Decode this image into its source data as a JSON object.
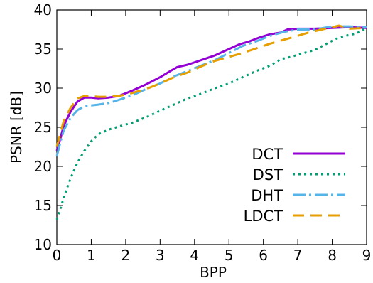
{
  "chart_data": {
    "type": "line",
    "title": "",
    "xlabel": "BPP",
    "ylabel": "PSNR [dB]",
    "xlim": [
      0,
      9
    ],
    "ylim": [
      10,
      40
    ],
    "x_ticks": [
      0,
      1,
      2,
      3,
      4,
      5,
      6,
      7,
      8,
      9
    ],
    "y_ticks": [
      10,
      15,
      20,
      25,
      30,
      35,
      40
    ],
    "grid": false,
    "legend_position": "bottom-right",
    "series": [
      {
        "name": "DCT",
        "color": "#9400d3",
        "dash": "solid",
        "points": [
          [
            0,
            22.0
          ],
          [
            0.1,
            23.5
          ],
          [
            0.2,
            25.2
          ],
          [
            0.4,
            27.0
          ],
          [
            0.6,
            28.3
          ],
          [
            0.8,
            28.8
          ],
          [
            1.0,
            28.8
          ],
          [
            1.2,
            28.7
          ],
          [
            1.5,
            28.8
          ],
          [
            1.8,
            29.0
          ],
          [
            2.2,
            29.7
          ],
          [
            2.6,
            30.5
          ],
          [
            3.0,
            31.4
          ],
          [
            3.3,
            32.2
          ],
          [
            3.5,
            32.7
          ],
          [
            3.8,
            33.0
          ],
          [
            4.2,
            33.6
          ],
          [
            4.6,
            34.2
          ],
          [
            5.0,
            35.0
          ],
          [
            5.3,
            35.6
          ],
          [
            5.6,
            36.0
          ],
          [
            5.9,
            36.5
          ],
          [
            6.2,
            36.9
          ],
          [
            6.5,
            37.1
          ],
          [
            6.7,
            37.5
          ],
          [
            7.0,
            37.6
          ],
          [
            7.5,
            37.6
          ],
          [
            8.0,
            37.7
          ],
          [
            8.5,
            37.8
          ],
          [
            9.0,
            37.7
          ]
        ]
      },
      {
        "name": "DST",
        "color": "#009e73",
        "dash": "dotted",
        "points": [
          [
            0,
            13.2
          ],
          [
            0.1,
            14.5
          ],
          [
            0.2,
            16.0
          ],
          [
            0.4,
            18.5
          ],
          [
            0.6,
            20.5
          ],
          [
            0.8,
            22.0
          ],
          [
            1.0,
            23.2
          ],
          [
            1.2,
            24.1
          ],
          [
            1.5,
            24.7
          ],
          [
            1.8,
            25.1
          ],
          [
            2.2,
            25.6
          ],
          [
            2.6,
            26.3
          ],
          [
            3.0,
            27.1
          ],
          [
            3.4,
            27.9
          ],
          [
            3.8,
            28.7
          ],
          [
            4.2,
            29.3
          ],
          [
            4.6,
            30.0
          ],
          [
            5.0,
            30.6
          ],
          [
            5.4,
            31.4
          ],
          [
            5.8,
            32.2
          ],
          [
            6.2,
            32.9
          ],
          [
            6.5,
            33.7
          ],
          [
            6.8,
            34.0
          ],
          [
            7.1,
            34.4
          ],
          [
            7.5,
            34.9
          ],
          [
            7.8,
            35.6
          ],
          [
            8.1,
            36.3
          ],
          [
            8.4,
            36.7
          ],
          [
            8.7,
            37.0
          ],
          [
            9.0,
            37.7
          ]
        ]
      },
      {
        "name": "DHT",
        "color": "#56b4e9",
        "dash": "dash-dot",
        "points": [
          [
            0,
            21.3
          ],
          [
            0.1,
            23.0
          ],
          [
            0.2,
            24.6
          ],
          [
            0.4,
            26.2
          ],
          [
            0.6,
            27.2
          ],
          [
            0.8,
            27.7
          ],
          [
            1.0,
            27.8
          ],
          [
            1.2,
            27.9
          ],
          [
            1.5,
            28.1
          ],
          [
            1.8,
            28.5
          ],
          [
            2.2,
            29.1
          ],
          [
            2.6,
            29.9
          ],
          [
            3.0,
            30.6
          ],
          [
            3.4,
            31.5
          ],
          [
            3.8,
            32.2
          ],
          [
            4.2,
            32.9
          ],
          [
            4.6,
            33.6
          ],
          [
            5.0,
            34.5
          ],
          [
            5.4,
            35.4
          ],
          [
            5.8,
            36.0
          ],
          [
            6.2,
            36.7
          ],
          [
            6.6,
            37.2
          ],
          [
            7.0,
            37.5
          ],
          [
            7.5,
            37.5
          ],
          [
            8.0,
            37.9
          ],
          [
            8.5,
            37.9
          ],
          [
            9.0,
            37.8
          ]
        ]
      },
      {
        "name": "LDCT",
        "color": "#e69f00",
        "dash": "dashed",
        "points": [
          [
            0,
            22.5
          ],
          [
            0.1,
            24.2
          ],
          [
            0.2,
            25.8
          ],
          [
            0.4,
            27.5
          ],
          [
            0.6,
            28.7
          ],
          [
            0.8,
            29.0
          ],
          [
            1.0,
            29.0
          ],
          [
            1.2,
            28.9
          ],
          [
            1.5,
            28.9
          ],
          [
            1.8,
            29.0
          ],
          [
            2.2,
            29.4
          ],
          [
            2.6,
            29.9
          ],
          [
            3.0,
            30.6
          ],
          [
            3.4,
            31.4
          ],
          [
            3.8,
            32.0
          ],
          [
            4.2,
            32.8
          ],
          [
            4.6,
            33.5
          ],
          [
            5.0,
            34.0
          ],
          [
            5.4,
            34.5
          ],
          [
            5.8,
            35.1
          ],
          [
            6.2,
            35.7
          ],
          [
            6.6,
            36.2
          ],
          [
            7.0,
            36.7
          ],
          [
            7.3,
            37.1
          ],
          [
            7.6,
            37.4
          ],
          [
            7.9,
            37.7
          ],
          [
            8.2,
            38.0
          ],
          [
            8.5,
            37.6
          ],
          [
            9.0,
            37.7
          ]
        ]
      }
    ]
  }
}
